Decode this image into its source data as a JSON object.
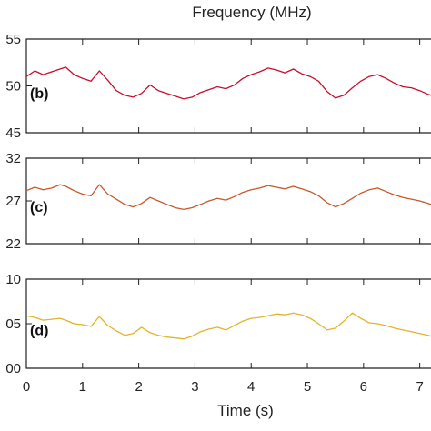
{
  "chart_data": {
    "type": "line",
    "title": "Frequency (MHz)",
    "xlabel": "Time (s)",
    "xlim": [
      0,
      7.2
    ],
    "x_ticks": [
      0,
      1,
      2,
      3,
      4,
      5,
      6,
      7
    ],
    "x_tick_labels": [
      "0",
      "1",
      "2",
      "3",
      "4",
      "5",
      "6",
      "7"
    ],
    "panels": [
      {
        "label": "(b)",
        "color": "#c8102e",
        "ylim": [
          45,
          55
        ],
        "y_ticks": [
          45,
          50,
          55
        ],
        "y_tick_labels": [
          "45",
          "50",
          "55"
        ],
        "x": [
          0,
          0.15,
          0.3,
          0.45,
          0.6,
          0.7,
          0.85,
          1.0,
          1.15,
          1.3,
          1.45,
          1.6,
          1.75,
          1.9,
          2.05,
          2.2,
          2.35,
          2.5,
          2.65,
          2.8,
          2.95,
          3.1,
          3.25,
          3.4,
          3.55,
          3.7,
          3.85,
          4.0,
          4.15,
          4.3,
          4.45,
          4.6,
          4.75,
          4.9,
          5.05,
          5.2,
          5.35,
          5.5,
          5.65,
          5.8,
          5.95,
          6.1,
          6.25,
          6.4,
          6.55,
          6.7,
          6.85,
          7.0,
          7.15,
          7.2
        ],
        "y": [
          51.0,
          51.6,
          51.2,
          51.5,
          51.8,
          52.0,
          51.2,
          50.8,
          50.5,
          51.6,
          50.6,
          49.5,
          49.0,
          48.8,
          49.2,
          50.1,
          49.5,
          49.2,
          48.9,
          48.6,
          48.8,
          49.3,
          49.6,
          49.9,
          49.7,
          50.1,
          50.8,
          51.2,
          51.5,
          51.9,
          51.7,
          51.4,
          51.8,
          51.3,
          51.0,
          50.5,
          49.4,
          48.7,
          49.0,
          49.8,
          50.5,
          51.0,
          51.2,
          50.8,
          50.3,
          49.9,
          49.8,
          49.5,
          49.1,
          49.0
        ]
      },
      {
        "label": "(c)",
        "color": "#c9582a",
        "ylim": [
          22,
          32
        ],
        "y_ticks": [
          22,
          27,
          32
        ],
        "y_tick_labels": [
          "22",
          "27",
          "32"
        ],
        "x": [
          0,
          0.15,
          0.3,
          0.45,
          0.6,
          0.7,
          0.85,
          1.0,
          1.15,
          1.3,
          1.45,
          1.6,
          1.75,
          1.9,
          2.05,
          2.2,
          2.35,
          2.5,
          2.65,
          2.8,
          2.95,
          3.1,
          3.25,
          3.4,
          3.55,
          3.7,
          3.85,
          4.0,
          4.15,
          4.3,
          4.45,
          4.6,
          4.75,
          4.9,
          5.05,
          5.2,
          5.35,
          5.5,
          5.65,
          5.8,
          5.95,
          6.1,
          6.25,
          6.4,
          6.55,
          6.7,
          6.85,
          7.0,
          7.15,
          7.2
        ],
        "y": [
          28.2,
          28.6,
          28.3,
          28.5,
          28.9,
          28.7,
          28.2,
          27.8,
          27.6,
          28.9,
          27.8,
          27.2,
          26.6,
          26.3,
          26.7,
          27.4,
          27.0,
          26.6,
          26.2,
          26.0,
          26.2,
          26.6,
          27.0,
          27.3,
          27.1,
          27.5,
          28.0,
          28.3,
          28.5,
          28.8,
          28.6,
          28.4,
          28.7,
          28.4,
          28.1,
          27.6,
          26.8,
          26.3,
          26.7,
          27.3,
          27.9,
          28.3,
          28.5,
          28.1,
          27.7,
          27.4,
          27.2,
          27.0,
          26.7,
          26.6
        ]
      },
      {
        "label": "(d)",
        "color": "#e3b32c",
        "ylim": [
          0,
          10
        ],
        "y_ticks": [
          0,
          5,
          10
        ],
        "y_tick_labels": [
          "00",
          "05",
          "10"
        ],
        "x": [
          0,
          0.15,
          0.3,
          0.45,
          0.6,
          0.7,
          0.85,
          1.0,
          1.15,
          1.3,
          1.45,
          1.6,
          1.75,
          1.9,
          2.05,
          2.2,
          2.35,
          2.5,
          2.65,
          2.8,
          2.95,
          3.1,
          3.25,
          3.4,
          3.55,
          3.7,
          3.85,
          4.0,
          4.15,
          4.3,
          4.45,
          4.6,
          4.75,
          4.9,
          5.05,
          5.2,
          5.35,
          5.5,
          5.65,
          5.8,
          5.95,
          6.1,
          6.25,
          6.4,
          6.55,
          6.7,
          6.85,
          7.0,
          7.15,
          7.2
        ],
        "y": [
          5.9,
          5.7,
          5.4,
          5.5,
          5.6,
          5.4,
          5.0,
          4.9,
          4.7,
          5.8,
          4.8,
          4.2,
          3.7,
          3.9,
          4.6,
          4.0,
          3.7,
          3.5,
          3.4,
          3.3,
          3.6,
          4.1,
          4.4,
          4.6,
          4.3,
          4.8,
          5.3,
          5.6,
          5.7,
          5.9,
          6.1,
          6.0,
          6.2,
          6.0,
          5.6,
          5.0,
          4.3,
          4.5,
          5.3,
          6.2,
          5.6,
          5.1,
          5.0,
          4.8,
          4.5,
          4.3,
          4.1,
          3.9,
          3.7,
          3.6
        ]
      }
    ]
  }
}
